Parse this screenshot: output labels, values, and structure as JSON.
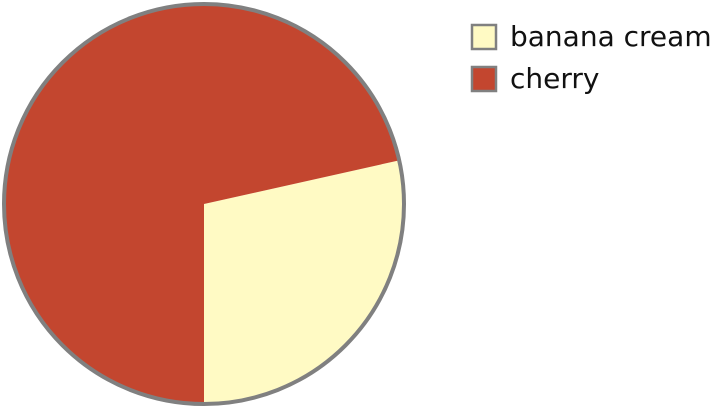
{
  "chart_data": {
    "type": "pie",
    "title": "",
    "slices": [
      {
        "label": "banana cream",
        "value": 28.5,
        "color": "#FFFAC4"
      },
      {
        "label": "cherry",
        "value": 71.5,
        "color": "#C3462F"
      }
    ],
    "legend_position": "top-right",
    "outline_color": "#808080"
  }
}
